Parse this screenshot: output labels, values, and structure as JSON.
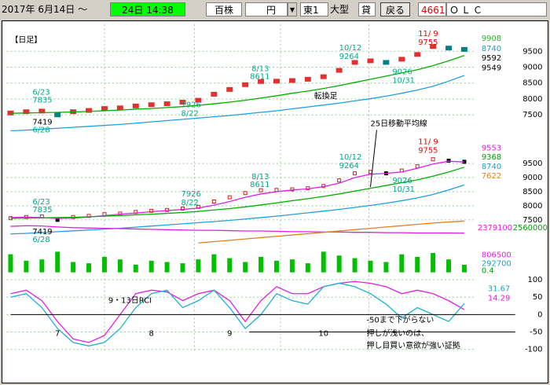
{
  "toolbar": {
    "date_from": "2017年 6月14日 ～",
    "date_to": "24日 14:38",
    "unit": "百株",
    "currency": "円",
    "market": "東1",
    "size": "大型",
    "lend": "貸",
    "back_button": "戻る",
    "code": "4661",
    "name": "ＯＬＣ"
  },
  "chart_data": [
    {
      "type": "line",
      "ylim": [
        7100,
        10150
      ],
      "yticks": [
        7500,
        8000,
        8500,
        9000,
        9500
      ],
      "grid": true,
      "series": [
        {
          "color": "#e03030",
          "down_color": "#008080",
          "marker": "square",
          "values": [
            7560,
            7600,
            7620,
            7500,
            7600,
            7640,
            7700,
            7720,
            7780,
            7820,
            7850,
            7900,
            7960,
            8150,
            8300,
            8450,
            8550,
            8560,
            8580,
            8620,
            8700,
            8900,
            9150,
            9200,
            9150,
            9250,
            9400,
            9650,
            9600,
            9560
          ]
        },
        {
          "color": "#00b000",
          "values": [
            7550,
            7560,
            7570,
            7580,
            7590,
            7610,
            7630,
            7650,
            7680,
            7700,
            7730,
            7760,
            7800,
            7850,
            7900,
            7960,
            8030,
            8100,
            8180,
            8250,
            8330,
            8420,
            8520,
            8620,
            8720,
            8820,
            8920,
            9050,
            9200,
            9368
          ]
        },
        {
          "color": "#20a0e0",
          "values": [
            7000,
            7020,
            7050,
            7080,
            7110,
            7140,
            7170,
            7200,
            7240,
            7280,
            7320,
            7360,
            7400,
            7440,
            7480,
            7530,
            7580,
            7630,
            7690,
            7750,
            7810,
            7870,
            7940,
            8010,
            8090,
            8180,
            8280,
            8400,
            8560,
            8740
          ]
        }
      ],
      "side_labels": [
        {
          "text": "9908",
          "color": "#30b030"
        },
        {
          "text": "8740",
          "color": "#20a0c0"
        },
        {
          "text": "9592",
          "color": "#000000"
        },
        {
          "text": "9549",
          "color": "#000000"
        }
      ],
      "annotations": [
        "【日足】",
        "6/23",
        "7835",
        "7419",
        "6/28",
        "7926",
        "8/22",
        "8/13",
        "8611",
        "10/12",
        "9264",
        "9026",
        "10/31",
        "11/ 9",
        "9755",
        "転換足"
      ]
    },
    {
      "type": "line",
      "ylim": [
        7220,
        10690
      ],
      "yticks": [
        7500,
        8000,
        8500,
        9000,
        9500
      ],
      "grid": true,
      "series": [
        {
          "color": "#d02020",
          "marker": "dot",
          "values": [
            7560,
            7600,
            7620,
            7500,
            7600,
            7640,
            7700,
            7720,
            7780,
            7820,
            7850,
            7900,
            7960,
            8150,
            8300,
            8450,
            8550,
            8560,
            8580,
            8620,
            8700,
            8900,
            9150,
            9200,
            9150,
            9250,
            9400,
            9650,
            9600,
            9560
          ]
        },
        {
          "color": "#e020e0",
          "values": [
            7580,
            7600,
            7580,
            7550,
            7560,
            7600,
            7650,
            7700,
            7740,
            7790,
            7830,
            7870,
            7920,
            8020,
            8150,
            8300,
            8420,
            8500,
            8560,
            8600,
            8680,
            8800,
            9000,
            9120,
            9150,
            9200,
            9330,
            9480,
            9580,
            9553
          ]
        },
        {
          "color": "#00b000",
          "values": [
            7550,
            7560,
            7570,
            7580,
            7590,
            7610,
            7630,
            7650,
            7680,
            7700,
            7730,
            7760,
            7800,
            7850,
            7900,
            7960,
            8030,
            8100,
            8180,
            8250,
            8330,
            8420,
            8520,
            8620,
            8720,
            8820,
            8920,
            9050,
            9200,
            9368
          ]
        },
        {
          "color": "#20a0e0",
          "values": [
            7000,
            7020,
            7050,
            7080,
            7110,
            7140,
            7170,
            7200,
            7240,
            7280,
            7320,
            7360,
            7400,
            7440,
            7480,
            7530,
            7580,
            7630,
            7690,
            7750,
            7810,
            7870,
            7940,
            8010,
            8090,
            8180,
            8280,
            8400,
            8560,
            8740
          ]
        }
      ],
      "side_labels": [
        {
          "text": "9553",
          "color": "#e020e0"
        },
        {
          "text": "9368",
          "color": "#00a000"
        },
        {
          "text": "8740",
          "color": "#20a0c0"
        },
        {
          "text": "7622",
          "color": "#e08020"
        }
      ],
      "annotations": [
        "6/23",
        "7835",
        "7419",
        "6/28",
        "7926",
        "8/22",
        "8/13",
        "8611",
        "10/12",
        "9264",
        "9026",
        "10/31",
        "11/ 9",
        "9755",
        "25日移動平均線"
      ]
    },
    {
      "type": "line",
      "ylim": [
        2200000,
        2600000
      ],
      "series": [
        {
          "color": "#e020e0",
          "values": [
            2480000,
            2490000,
            2485000,
            2470000,
            2460000,
            2455000,
            2450000,
            2445000,
            2440000,
            2435000,
            2430000,
            2425000,
            2420000,
            2420000,
            2415000,
            2410000,
            2410000,
            2405000,
            2400000,
            2400000,
            2395000,
            2395000,
            2390000,
            2390000,
            2385000,
            2385000,
            2380000,
            2380000,
            2379500,
            2379100
          ]
        },
        {
          "color": "#e08020",
          "values": [
            null,
            null,
            null,
            null,
            null,
            null,
            null,
            null,
            null,
            null,
            null,
            null,
            2230000,
            2250000,
            2270000,
            2290000,
            2310000,
            2330000,
            2350000,
            2370000,
            2390000,
            2410000,
            2430000,
            2450000,
            2470000,
            2490000,
            2510000,
            2530000,
            2545000,
            2560000
          ]
        }
      ],
      "side_labels": [
        {
          "text": "2379100",
          "color": "#e020e0"
        },
        {
          "text": "2560000",
          "color": "#00a000"
        }
      ]
    },
    {
      "type": "bar",
      "ylim": [
        0,
        1000000
      ],
      "color": "#00c000",
      "values": [
        700000,
        450000,
        500000,
        800000,
        400000,
        350000,
        600000,
        500000,
        300000,
        450000,
        400000,
        350000,
        500000,
        700000,
        550000,
        400000,
        600000,
        450000,
        500000,
        350000,
        800000,
        650000,
        550000,
        450000,
        400000,
        700000,
        600000,
        750000,
        500000,
        292700
      ],
      "side_labels": [
        {
          "text": "806500",
          "color": "#e020e0"
        },
        {
          "text": "292700",
          "color": "#20a0c0"
        },
        {
          "text": "0.4",
          "color": "#00a000"
        }
      ]
    },
    {
      "type": "line",
      "ylim": [
        -110,
        110
      ],
      "yticks": [
        100,
        50,
        0,
        -50,
        -100
      ],
      "grid": true,
      "categories": [
        null,
        null,
        null,
        "7",
        null,
        null,
        null,
        null,
        null,
        "8",
        null,
        null,
        null,
        null,
        "9",
        null,
        null,
        null,
        null,
        null,
        "10",
        null,
        null,
        null,
        null,
        null,
        null,
        null,
        null,
        null
      ],
      "series": [
        {
          "color": "#e020e0",
          "values": [
            60,
            70,
            40,
            -20,
            -70,
            -80,
            -60,
            0,
            60,
            70,
            65,
            40,
            60,
            70,
            40,
            -20,
            40,
            80,
            60,
            60,
            80,
            90,
            95,
            90,
            80,
            60,
            70,
            60,
            40,
            14.29
          ]
        },
        {
          "color": "#20b0d0",
          "values": [
            50,
            60,
            20,
            -40,
            -80,
            -90,
            -80,
            -40,
            20,
            60,
            70,
            20,
            40,
            70,
            20,
            -40,
            0,
            60,
            40,
            30,
            80,
            90,
            80,
            60,
            30,
            -10,
            20,
            0,
            -20,
            31.67
          ]
        }
      ],
      "side_labels": [
        {
          "text": "31.67",
          "color": "#20a0c0"
        },
        {
          "text": "14.29",
          "color": "#e020e0"
        }
      ],
      "annotations": [
        "9・13日RCI",
        "-50まで下がらない",
        "押しが浅いのは、",
        "押し目買い意欲が強い証拠"
      ]
    }
  ]
}
